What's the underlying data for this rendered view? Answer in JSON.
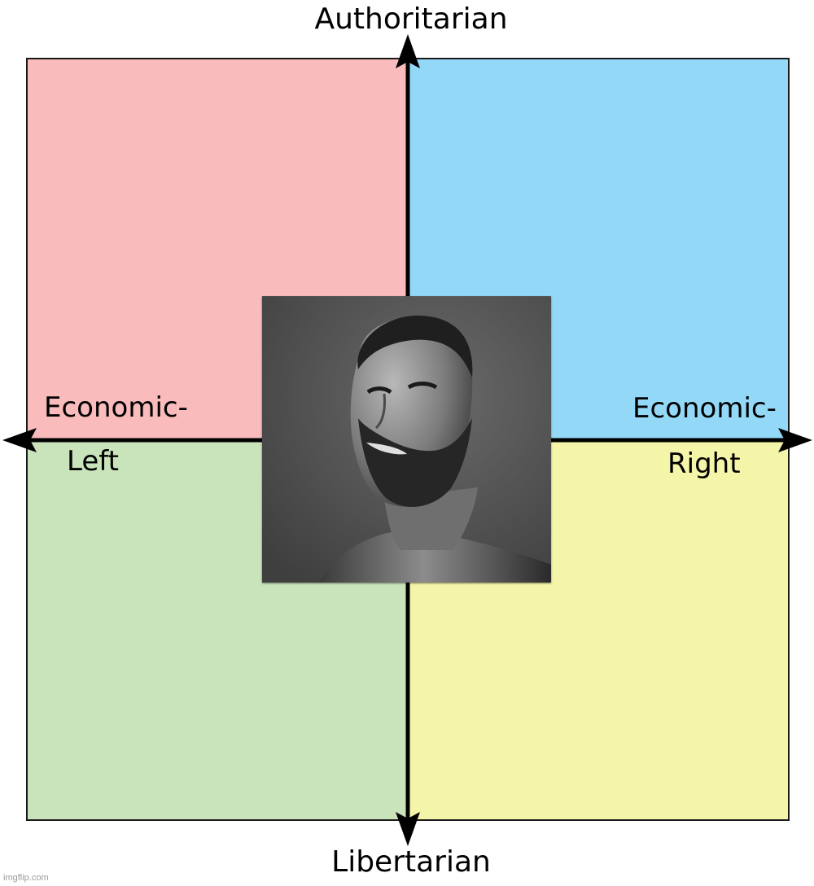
{
  "labels": {
    "top": "Authoritarian",
    "bottom": "Libertarian",
    "left_line1": "Economic-",
    "left_line2": "Left",
    "right_line1": "Economic-",
    "right_line2": "Right"
  },
  "quadrant_colors": {
    "authoritarian_left": "#f9bbbb",
    "authoritarian_right": "#93d9f7",
    "libertarian_left": "#c9e3bb",
    "libertarian_right": "#f4f5a8"
  },
  "axis_color": "#000000",
  "portrait": {
    "subject": "grayscale photo of a bearded smiling man",
    "icon": "photo-portrait"
  },
  "watermark": "imgflip.com"
}
